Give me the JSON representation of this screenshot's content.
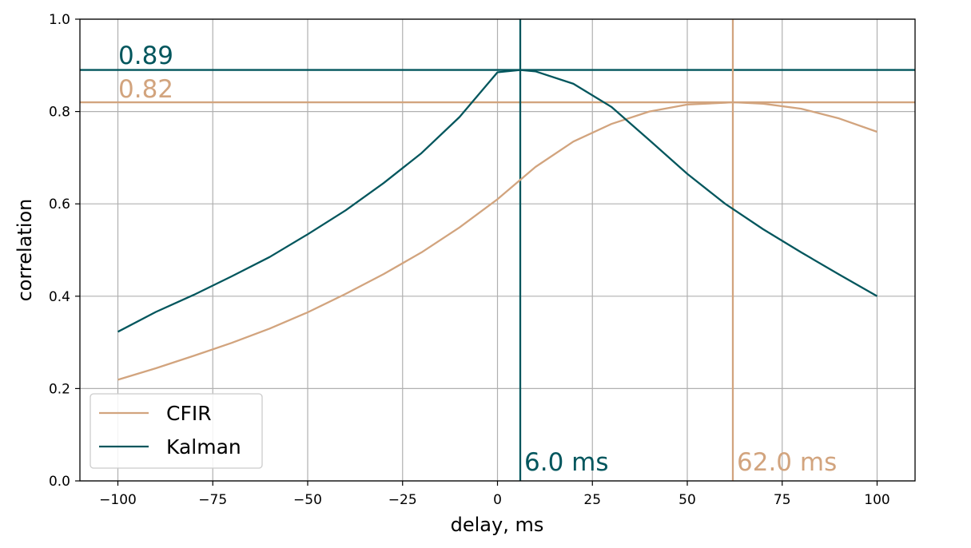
{
  "chart_data": {
    "type": "line",
    "xlabel": "delay, ms",
    "ylabel": "correlation",
    "xlim": [
      -110,
      110
    ],
    "ylim": [
      0,
      1.0
    ],
    "xticks": [
      -100,
      -75,
      -50,
      -25,
      0,
      25,
      50,
      75,
      100
    ],
    "xtick_labels": [
      "−100",
      "−75",
      "−50",
      "−25",
      "0",
      "25",
      "50",
      "75",
      "100"
    ],
    "yticks": [
      0,
      0.2,
      0.4,
      0.6,
      0.8,
      1.0
    ],
    "ytick_labels": [
      "0.0",
      "0.2",
      "0.4",
      "0.6",
      "0.8",
      "1.0"
    ],
    "grid": true,
    "legend_position": "lower-left",
    "series": [
      {
        "name": "CFIR",
        "color": "#d2a47e",
        "x": [
          -100,
          -90,
          -80,
          -70,
          -60,
          -50,
          -40,
          -30,
          -20,
          -10,
          0,
          10,
          20,
          30,
          40,
          50,
          60,
          62,
          70,
          80,
          90,
          100
        ],
        "y": [
          0.219,
          0.244,
          0.271,
          0.299,
          0.33,
          0.365,
          0.405,
          0.448,
          0.495,
          0.549,
          0.61,
          0.68,
          0.735,
          0.773,
          0.8,
          0.815,
          0.819,
          0.82,
          0.817,
          0.806,
          0.785,
          0.756
        ]
      },
      {
        "name": "Kalman",
        "color": "#02565d",
        "x": [
          -100,
          -90,
          -80,
          -70,
          -60,
          -50,
          -40,
          -30,
          -20,
          -10,
          0,
          6,
          10,
          20,
          30,
          40,
          50,
          60,
          70,
          80,
          90,
          100
        ],
        "y": [
          0.323,
          0.366,
          0.403,
          0.443,
          0.485,
          0.534,
          0.586,
          0.645,
          0.71,
          0.788,
          0.885,
          0.89,
          0.887,
          0.86,
          0.81,
          0.738,
          0.665,
          0.6,
          0.545,
          0.495,
          0.447,
          0.4
        ]
      }
    ],
    "annotations": {
      "cfir_peak_value": "0.82",
      "kalman_peak_value": "0.89",
      "cfir_peak_delay": "62.0 ms",
      "kalman_peak_delay": "6.0 ms"
    },
    "reference_lines": {
      "cfir_peak_y": 0.82,
      "kalman_peak_y": 0.89,
      "cfir_peak_x": 62,
      "kalman_peak_x": 6
    }
  }
}
